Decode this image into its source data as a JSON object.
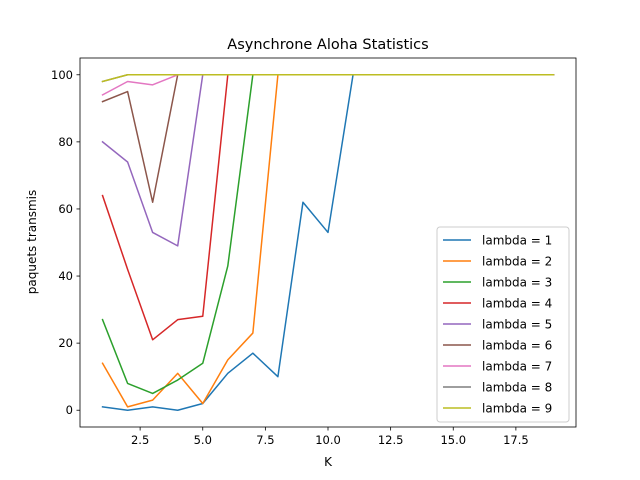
{
  "chart_data": {
    "type": "line",
    "title": "Asynchrone Aloha Statistics",
    "xlabel": "K",
    "ylabel": "paquets transmis",
    "xlim": [
      0.1,
      19.9
    ],
    "ylim": [
      -5,
      105
    ],
    "xticks": [
      2.5,
      5.0,
      7.5,
      10.0,
      12.5,
      15.0,
      17.5
    ],
    "xtick_labels": [
      "2.5",
      "5.0",
      "7.5",
      "10.0",
      "12.5",
      "15.0",
      "17.5"
    ],
    "yticks": [
      0,
      20,
      40,
      60,
      80,
      100
    ],
    "ytick_labels": [
      "0",
      "20",
      "40",
      "60",
      "80",
      "100"
    ],
    "grid": false,
    "legend_position": "lower-right",
    "x": [
      1,
      2,
      3,
      4,
      5,
      6,
      7,
      8,
      9,
      10,
      11,
      12,
      13,
      14,
      15,
      16,
      17,
      18,
      19
    ],
    "series": [
      {
        "name": "lambda = 1",
        "color": "#1f77b4",
        "values": [
          1,
          0,
          1,
          0,
          2,
          11,
          17,
          10,
          62,
          53,
          100,
          100,
          100,
          100,
          100,
          100,
          100,
          100,
          100
        ]
      },
      {
        "name": "lambda = 2",
        "color": "#ff7f0e",
        "values": [
          14,
          1,
          3,
          11,
          2,
          15,
          23,
          100,
          100,
          100,
          100,
          100,
          100,
          100,
          100,
          100,
          100,
          100,
          100
        ]
      },
      {
        "name": "lambda = 3",
        "color": "#2ca02c",
        "values": [
          27,
          8,
          5,
          9,
          14,
          43,
          100,
          100,
          100,
          100,
          100,
          100,
          100,
          100,
          100,
          100,
          100,
          100,
          100
        ]
      },
      {
        "name": "lambda = 4",
        "color": "#d62728",
        "values": [
          64,
          42,
          21,
          27,
          28,
          100,
          100,
          100,
          100,
          100,
          100,
          100,
          100,
          100,
          100,
          100,
          100,
          100,
          100
        ]
      },
      {
        "name": "lambda = 5",
        "color": "#9467bd",
        "values": [
          80,
          74,
          53,
          49,
          100,
          100,
          100,
          100,
          100,
          100,
          100,
          100,
          100,
          100,
          100,
          100,
          100,
          100,
          100
        ]
      },
      {
        "name": "lambda = 6",
        "color": "#8c564b",
        "values": [
          92,
          95,
          62,
          100,
          100,
          100,
          100,
          100,
          100,
          100,
          100,
          100,
          100,
          100,
          100,
          100,
          100,
          100,
          100
        ]
      },
      {
        "name": "lambda = 7",
        "color": "#e377c2",
        "values": [
          94,
          98,
          97,
          100,
          100,
          100,
          100,
          100,
          100,
          100,
          100,
          100,
          100,
          100,
          100,
          100,
          100,
          100,
          100
        ]
      },
      {
        "name": "lambda = 8",
        "color": "#7f7f7f",
        "values": [
          98,
          100,
          100,
          100,
          100,
          100,
          100,
          100,
          100,
          100,
          100,
          100,
          100,
          100,
          100,
          100,
          100,
          100,
          100
        ]
      },
      {
        "name": "lambda = 9",
        "color": "#bcbd22",
        "values": [
          98,
          100,
          100,
          100,
          100,
          100,
          100,
          100,
          100,
          100,
          100,
          100,
          100,
          100,
          100,
          100,
          100,
          100,
          100
        ]
      }
    ]
  }
}
